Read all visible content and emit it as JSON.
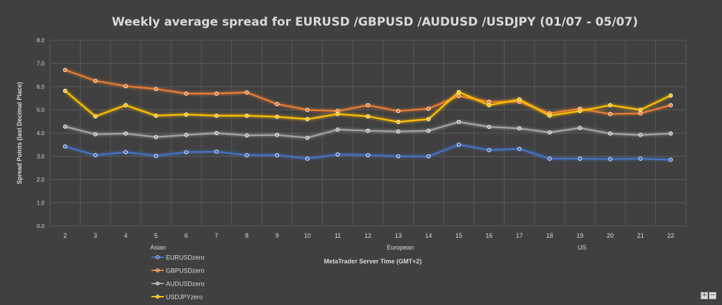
{
  "chart_data": {
    "type": "line",
    "title": "Weekly average spread for EURUSD /GBPUSD /AUDUSD /USDJPY (01/07 - 05/07)",
    "xlabel": "MetaTrader Server Time (GMT+2)",
    "ylabel": "Spread Points  (last Decimal Place)",
    "ylim": [
      0,
      8
    ],
    "yticks": [
      "0.0",
      "1.0",
      "2.0",
      "3.0",
      "4.0",
      "5.0",
      "6.0",
      "7.0",
      "8.0"
    ],
    "x": [
      "2",
      "3",
      "4",
      "5",
      "6",
      "7",
      "8",
      "9",
      "10",
      "11",
      "12",
      "13",
      "14",
      "15",
      "16",
      "17",
      "18",
      "19",
      "20",
      "21",
      "22"
    ],
    "sessions": [
      {
        "label": "Asian",
        "at": "5"
      },
      {
        "label": "European",
        "at": "13"
      },
      {
        "label": "US",
        "at": "19"
      }
    ],
    "grid": true,
    "legend": "bottom-left",
    "series": [
      {
        "name": "EURUSDzero",
        "color": "#4472c4",
        "values": [
          3.42,
          3.05,
          3.18,
          3.02,
          3.18,
          3.2,
          3.05,
          3.05,
          2.9,
          3.08,
          3.05,
          3.0,
          3.0,
          3.5,
          3.27,
          3.32,
          2.9,
          2.9,
          2.88,
          2.9,
          2.85
        ]
      },
      {
        "name": "GBPUSDzero",
        "color": "#ed7d31",
        "values": [
          6.72,
          6.25,
          6.02,
          5.9,
          5.7,
          5.7,
          5.75,
          5.25,
          5.0,
          4.95,
          5.2,
          4.95,
          5.05,
          5.6,
          5.35,
          5.35,
          4.85,
          5.05,
          4.82,
          4.85,
          5.2
        ]
      },
      {
        "name": "AUDUSDzero",
        "color": "#a5a5a5",
        "values": [
          4.28,
          3.95,
          3.98,
          3.83,
          3.92,
          4.0,
          3.9,
          3.92,
          3.8,
          4.15,
          4.1,
          4.07,
          4.1,
          4.48,
          4.27,
          4.2,
          4.03,
          4.22,
          3.98,
          3.92,
          3.98
        ]
      },
      {
        "name": "USDJPYzero",
        "color": "#ffc000",
        "values": [
          5.82,
          4.72,
          5.2,
          4.75,
          4.8,
          4.75,
          4.75,
          4.7,
          4.6,
          4.82,
          4.72,
          4.48,
          4.6,
          5.77,
          5.2,
          5.45,
          4.75,
          4.95,
          5.2,
          5.0,
          5.62
        ]
      }
    ]
  },
  "controls": {
    "zoom_in": "+",
    "zoom_out": "−"
  }
}
